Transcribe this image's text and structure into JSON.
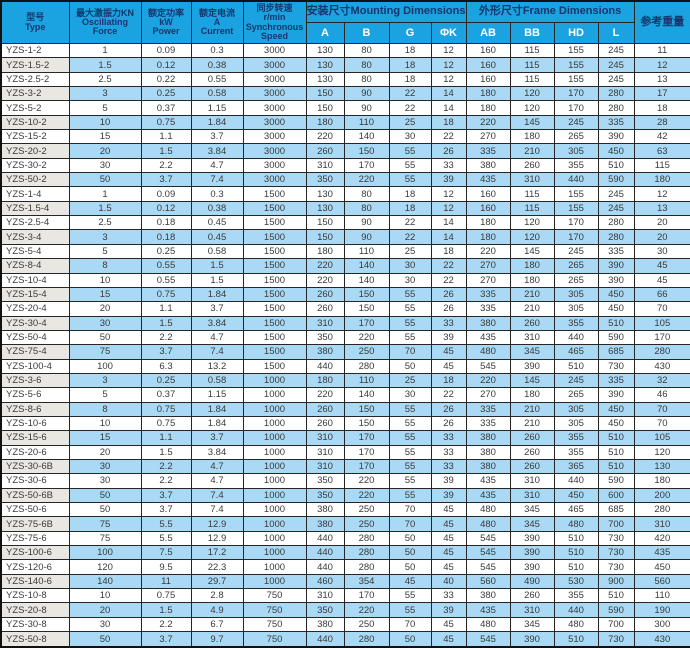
{
  "colors": {
    "header_bg": "#1aa3e0",
    "header_text": "#16366b",
    "subheader_text": "#ffffff",
    "row_alt_bg": "#a9d9f5",
    "type_col_alt_bg": "#e8e7e2",
    "data_text": "#3a3a3a",
    "border": "#262626"
  },
  "header": {
    "type_label": "型号\nType",
    "force_label": "最大激振力KN\nOscillating\nForce",
    "power_label": "额定功率\nkW\nPower",
    "current_label": "额定电流\nA\nCurrent",
    "speed_label": "同步转速\nr/min\nSynchronous\nSpeed",
    "mounting_group": "安装尺寸Mounting Dimensions",
    "mounting_cols": [
      "A",
      "B",
      "G",
      "ΦK"
    ],
    "frame_group": "外形尺寸Frame Dimensions",
    "frame_cols": [
      "AB",
      "BB",
      "HD",
      "L"
    ],
    "weight_label": "参考重量"
  },
  "rows": [
    [
      "YZS-1-2",
      "1",
      "0.09",
      "0.3",
      "3000",
      "130",
      "80",
      "18",
      "12",
      "160",
      "115",
      "155",
      "245",
      "11"
    ],
    [
      "YZS-1.5-2",
      "1.5",
      "0.12",
      "0.38",
      "3000",
      "130",
      "80",
      "18",
      "12",
      "160",
      "115",
      "155",
      "245",
      "12"
    ],
    [
      "YZS-2.5-2",
      "2.5",
      "0.22",
      "0.55",
      "3000",
      "130",
      "80",
      "18",
      "12",
      "160",
      "115",
      "155",
      "245",
      "13"
    ],
    [
      "YZS-3-2",
      "3",
      "0.25",
      "0.58",
      "3000",
      "150",
      "90",
      "22",
      "14",
      "180",
      "120",
      "170",
      "280",
      "17"
    ],
    [
      "YZS-5-2",
      "5",
      "0.37",
      "1.15",
      "3000",
      "150",
      "90",
      "22",
      "14",
      "180",
      "120",
      "170",
      "280",
      "18"
    ],
    [
      "YZS-10-2",
      "10",
      "0.75",
      "1.84",
      "3000",
      "180",
      "110",
      "25",
      "18",
      "220",
      "145",
      "245",
      "335",
      "28"
    ],
    [
      "YZS-15-2",
      "15",
      "1.1",
      "3.7",
      "3000",
      "220",
      "140",
      "30",
      "22",
      "270",
      "180",
      "265",
      "390",
      "42"
    ],
    [
      "YZS-20-2",
      "20",
      "1.5",
      "3.84",
      "3000",
      "260",
      "150",
      "55",
      "26",
      "335",
      "210",
      "305",
      "450",
      "63"
    ],
    [
      "YZS-30-2",
      "30",
      "2.2",
      "4.7",
      "3000",
      "310",
      "170",
      "55",
      "33",
      "380",
      "260",
      "355",
      "510",
      "115"
    ],
    [
      "YZS-50-2",
      "50",
      "3.7",
      "7.4",
      "3000",
      "350",
      "220",
      "55",
      "39",
      "435",
      "310",
      "440",
      "590",
      "180"
    ],
    [
      "YZS-1-4",
      "1",
      "0.09",
      "0.3",
      "1500",
      "130",
      "80",
      "18",
      "12",
      "160",
      "115",
      "155",
      "245",
      "12"
    ],
    [
      "YZS-1.5-4",
      "1.5",
      "0.12",
      "0.38",
      "1500",
      "130",
      "80",
      "18",
      "12",
      "160",
      "115",
      "155",
      "245",
      "13"
    ],
    [
      "YZS-2.5-4",
      "2.5",
      "0.18",
      "0.45",
      "1500",
      "150",
      "90",
      "22",
      "14",
      "180",
      "120",
      "170",
      "280",
      "20"
    ],
    [
      "YZS-3-4",
      "3",
      "0.18",
      "0.45",
      "1500",
      "150",
      "90",
      "22",
      "14",
      "180",
      "120",
      "170",
      "280",
      "20"
    ],
    [
      "YZS-5-4",
      "5",
      "0.25",
      "0.58",
      "1500",
      "180",
      "110",
      "25",
      "18",
      "220",
      "145",
      "245",
      "335",
      "30"
    ],
    [
      "YZS-8-4",
      "8",
      "0.55",
      "1.5",
      "1500",
      "220",
      "140",
      "30",
      "22",
      "270",
      "180",
      "265",
      "390",
      "45"
    ],
    [
      "YZS-10-4",
      "10",
      "0.55",
      "1.5",
      "1500",
      "220",
      "140",
      "30",
      "22",
      "270",
      "180",
      "265",
      "390",
      "45"
    ],
    [
      "YZS-15-4",
      "15",
      "0.75",
      "1.84",
      "1500",
      "260",
      "150",
      "55",
      "26",
      "335",
      "210",
      "305",
      "450",
      "66"
    ],
    [
      "YZS-20-4",
      "20",
      "1.1",
      "3.7",
      "1500",
      "260",
      "150",
      "55",
      "26",
      "335",
      "210",
      "305",
      "450",
      "70"
    ],
    [
      "YZS-30-4",
      "30",
      "1.5",
      "3.84",
      "1500",
      "310",
      "170",
      "55",
      "33",
      "380",
      "260",
      "355",
      "510",
      "105"
    ],
    [
      "YZS-50-4",
      "50",
      "2.2",
      "4.7",
      "1500",
      "350",
      "220",
      "55",
      "39",
      "435",
      "310",
      "440",
      "590",
      "170"
    ],
    [
      "YZS-75-4",
      "75",
      "3.7",
      "7.4",
      "1500",
      "380",
      "250",
      "70",
      "45",
      "480",
      "345",
      "465",
      "685",
      "280"
    ],
    [
      "YZS-100-4",
      "100",
      "6.3",
      "13.2",
      "1500",
      "440",
      "280",
      "50",
      "45",
      "545",
      "390",
      "510",
      "730",
      "430"
    ],
    [
      "YZS-3-6",
      "3",
      "0.25",
      "0.58",
      "1000",
      "180",
      "110",
      "25",
      "18",
      "220",
      "145",
      "245",
      "335",
      "32"
    ],
    [
      "YZS-5-6",
      "5",
      "0.37",
      "1.15",
      "1000",
      "220",
      "140",
      "30",
      "22",
      "270",
      "180",
      "265",
      "390",
      "46"
    ],
    [
      "YZS-8-6",
      "8",
      "0.75",
      "1.84",
      "1000",
      "260",
      "150",
      "55",
      "26",
      "335",
      "210",
      "305",
      "450",
      "70"
    ],
    [
      "YZS-10-6",
      "10",
      "0.75",
      "1.84",
      "1000",
      "260",
      "150",
      "55",
      "26",
      "335",
      "210",
      "305",
      "450",
      "70"
    ],
    [
      "YZS-15-6",
      "15",
      "1.1",
      "3.7",
      "1000",
      "310",
      "170",
      "55",
      "33",
      "380",
      "260",
      "355",
      "510",
      "105"
    ],
    [
      "YZS-20-6",
      "20",
      "1.5",
      "3.84",
      "1000",
      "310",
      "170",
      "55",
      "33",
      "380",
      "260",
      "355",
      "510",
      "120"
    ],
    [
      "YZS-30-6B",
      "30",
      "2.2",
      "4.7",
      "1000",
      "310",
      "170",
      "55",
      "33",
      "380",
      "260",
      "365",
      "510",
      "130"
    ],
    [
      "YZS-30-6",
      "30",
      "2.2",
      "4.7",
      "1000",
      "350",
      "220",
      "55",
      "39",
      "435",
      "310",
      "440",
      "590",
      "180"
    ],
    [
      "YZS-50-6B",
      "50",
      "3.7",
      "7.4",
      "1000",
      "350",
      "220",
      "55",
      "39",
      "435",
      "310",
      "450",
      "600",
      "200"
    ],
    [
      "YZS-50-6",
      "50",
      "3.7",
      "7.4",
      "1000",
      "380",
      "250",
      "70",
      "45",
      "480",
      "345",
      "465",
      "685",
      "280"
    ],
    [
      "YZS-75-6B",
      "75",
      "5.5",
      "12.9",
      "1000",
      "380",
      "250",
      "70",
      "45",
      "480",
      "345",
      "480",
      "700",
      "310"
    ],
    [
      "YZS-75-6",
      "75",
      "5.5",
      "12.9",
      "1000",
      "440",
      "280",
      "50",
      "45",
      "545",
      "390",
      "510",
      "730",
      "420"
    ],
    [
      "YZS-100-6",
      "100",
      "7.5",
      "17.2",
      "1000",
      "440",
      "280",
      "50",
      "45",
      "545",
      "390",
      "510",
      "730",
      "435"
    ],
    [
      "YZS-120-6",
      "120",
      "9.5",
      "22.3",
      "1000",
      "440",
      "280",
      "50",
      "45",
      "545",
      "390",
      "510",
      "730",
      "450"
    ],
    [
      "YZS-140-6",
      "140",
      "11",
      "29.7",
      "1000",
      "460",
      "354",
      "45",
      "40",
      "560",
      "490",
      "530",
      "900",
      "560"
    ],
    [
      "YZS-10-8",
      "10",
      "0.75",
      "2.8",
      "750",
      "310",
      "170",
      "55",
      "33",
      "380",
      "260",
      "355",
      "510",
      "110"
    ],
    [
      "YZS-20-8",
      "20",
      "1.5",
      "4.9",
      "750",
      "350",
      "220",
      "55",
      "39",
      "435",
      "310",
      "440",
      "590",
      "190"
    ],
    [
      "YZS-30-8",
      "30",
      "2.2",
      "6.7",
      "750",
      "380",
      "250",
      "70",
      "45",
      "480",
      "345",
      "480",
      "700",
      "300"
    ],
    [
      "YZS-50-8",
      "50",
      "3.7",
      "9.7",
      "750",
      "440",
      "280",
      "50",
      "45",
      "545",
      "390",
      "510",
      "730",
      "430"
    ]
  ]
}
